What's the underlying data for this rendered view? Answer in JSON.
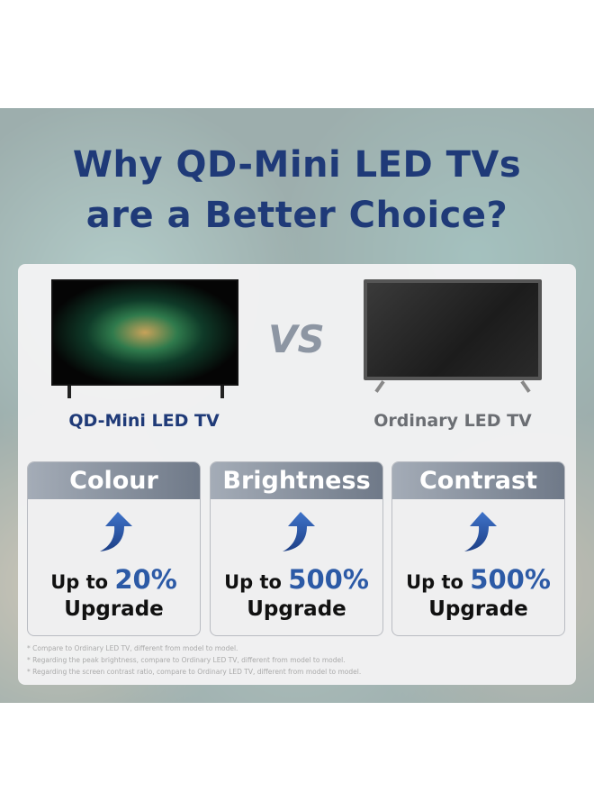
{
  "title": {
    "line1": "Why QD-Mini LED TVs",
    "line2": "are a Better Choice?"
  },
  "comparison": {
    "left_label": "QD-Mini LED TV",
    "right_label": "Ordinary LED TV",
    "vs": "VS"
  },
  "colors": {
    "title": "#1f3a78",
    "accent": "#2c5aa6",
    "ordinary": "#6b6e73"
  },
  "cards": [
    {
      "title": "Colour",
      "prefix": "Up to ",
      "value": "20%",
      "suffix": "Upgrade",
      "icon": "arrow-up-icon"
    },
    {
      "title": "Brightness",
      "prefix": "Up to ",
      "value": "500%",
      "suffix": "Upgrade",
      "icon": "arrow-up-icon"
    },
    {
      "title": "Contrast",
      "prefix": "Up to ",
      "value": "500%",
      "suffix": "Upgrade",
      "icon": "arrow-up-icon"
    }
  ],
  "footnotes": [
    "* Compare to Ordinary LED TV,  different from model to model.",
    "* Regarding the peak brightness, compare to Ordinary LED TV, different from model to model.",
    "* Regarding the screen contrast ratio, compare to Ordinary LED TV, different from model to model."
  ]
}
